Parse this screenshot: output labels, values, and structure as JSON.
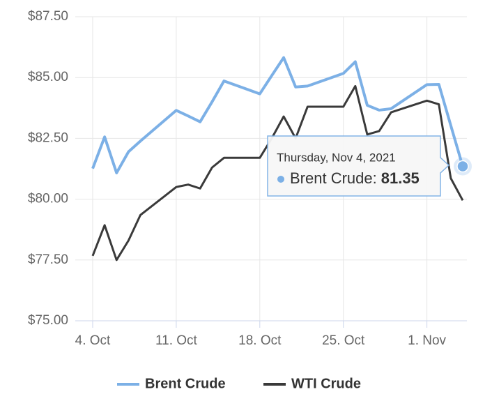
{
  "chart_data": {
    "type": "line",
    "x": [
      "2021-10-04",
      "2021-10-05",
      "2021-10-06",
      "2021-10-07",
      "2021-10-08",
      "2021-10-11",
      "2021-10-12",
      "2021-10-13",
      "2021-10-14",
      "2021-10-15",
      "2021-10-18",
      "2021-10-19",
      "2021-10-20",
      "2021-10-21",
      "2021-10-22",
      "2021-10-25",
      "2021-10-26",
      "2021-10-27",
      "2021-10-28",
      "2021-10-29",
      "2021-11-01",
      "2021-11-02",
      "2021-11-03",
      "2021-11-04"
    ],
    "series": [
      {
        "name": "Brent Crude",
        "color": "#7cb0e6",
        "values": [
          81.26,
          82.56,
          81.08,
          81.95,
          82.39,
          83.65,
          83.42,
          83.18,
          84.0,
          84.86,
          84.33,
          85.08,
          85.82,
          84.61,
          84.65,
          85.17,
          85.65,
          83.86,
          83.66,
          83.72,
          84.71,
          84.72,
          83.03,
          81.35
        ]
      },
      {
        "name": "WTI Crude",
        "color": "#3a3a3a",
        "values": [
          77.67,
          78.93,
          77.5,
          78.3,
          79.35,
          80.5,
          80.6,
          80.44,
          81.3,
          81.7,
          81.7,
          82.5,
          83.4,
          82.5,
          83.8,
          83.8,
          84.65,
          82.66,
          82.8,
          83.57,
          84.05,
          83.9,
          80.86,
          79.95
        ]
      }
    ],
    "xlim": [
      "2021-10-04",
      "2021-11-04"
    ],
    "xticks": [
      {
        "value": "2021-10-04",
        "label": "4. Oct"
      },
      {
        "value": "2021-10-11",
        "label": "11. Oct"
      },
      {
        "value": "2021-10-18",
        "label": "18. Oct"
      },
      {
        "value": "2021-10-25",
        "label": "25. Oct"
      },
      {
        "value": "2021-11-01",
        "label": "1. Nov"
      }
    ],
    "ylim": [
      75,
      87.5
    ],
    "yticks": [
      {
        "value": 75,
        "label": "$75.00"
      },
      {
        "value": 77.5,
        "label": "$77.50"
      },
      {
        "value": 80,
        "label": "$80.00"
      },
      {
        "value": 82.5,
        "label": "$82.50"
      },
      {
        "value": 85,
        "label": "$85.00"
      },
      {
        "value": 87.5,
        "label": "$87.50"
      }
    ],
    "grid": true,
    "legend": "bottom",
    "tooltip": {
      "date": "Thursday, Nov 4, 2021",
      "label": "Brent Crude:"
    }
  }
}
